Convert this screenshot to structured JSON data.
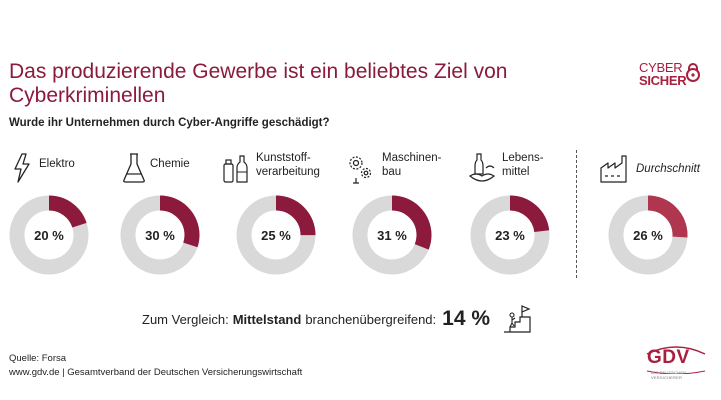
{
  "header": {
    "title": "Das produzierende Gewerbe ist ein beliebtes Ziel von Cyberkriminellen",
    "question": "Wurde ihr Unternehmen durch Cyber-Angriffe geschädigt?"
  },
  "logo": {
    "line1": "CYBER",
    "line2": "SICHER"
  },
  "colors": {
    "accent": "#8b1a3c",
    "average": "#b0364f",
    "ring": "#d9d9d9"
  },
  "chart_data": {
    "type": "pie",
    "title": "Wurde ihr Unternehmen durch Cyber-Angriffe geschädigt?",
    "categories": [
      "Elektro",
      "Chemie",
      "Kunststoffverarbeitung",
      "Maschinenbau",
      "Lebensmittel",
      "Durchschnitt"
    ],
    "values": [
      20,
      30,
      25,
      31,
      23,
      26
    ],
    "labels": [
      "20 %",
      "30 %",
      "25 %",
      "31 %",
      "23 %",
      "26 %"
    ],
    "display_names": [
      "Elektro",
      "Chemie",
      "Kunststoff-\nverarbeitung",
      "Maschinen-\nbau",
      "Lebens-\nmittel",
      "Durchschnitt"
    ],
    "icons": [
      "lightning-icon",
      "flask-icon",
      "bottles-icon",
      "gears-icon",
      "food-icon",
      "factory-icon"
    ]
  },
  "comparison": {
    "prefix": "Zum Vergleich:",
    "bold": "Mittelstand",
    "suffix": "branchenübergreifend:",
    "value": "14 %",
    "icon": "stairs-flag-icon"
  },
  "footer": {
    "source": "Quelle: Forsa",
    "credit": "www.gdv.de | Gesamtverband der Deutschen Versicherungswirtschaft"
  },
  "gdv_logo": {
    "name": "GDV",
    "tagline": "DIE DEUTSCHEN VERSICHERER"
  }
}
